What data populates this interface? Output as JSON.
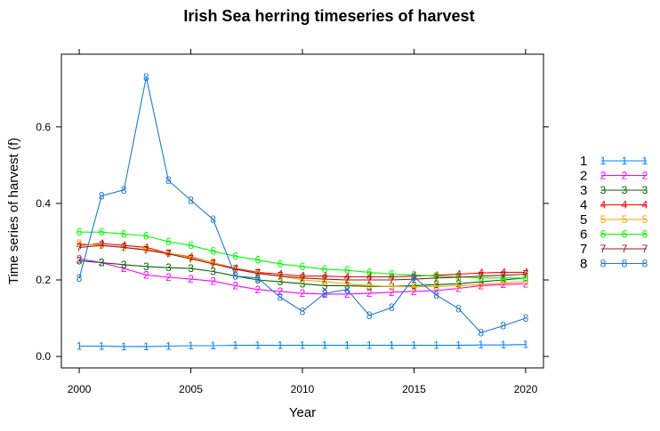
{
  "chart_data": {
    "type": "line",
    "title": "Irish Sea herring timeseries of harvest",
    "xlabel": "Year",
    "ylabel": "Time series of harvest (f)",
    "xlim": [
      1999.2,
      2020.8
    ],
    "ylim": [
      -0.03,
      0.79
    ],
    "x_ticks": [
      "2000",
      "2005",
      "2010",
      "2015",
      "2020"
    ],
    "y_ticks": [
      "0.0",
      "0.2",
      "0.4",
      "0.6"
    ],
    "legend_position": "right",
    "grid": false,
    "x": [
      2000,
      2001,
      2002,
      2003,
      2004,
      2005,
      2006,
      2007,
      2008,
      2009,
      2010,
      2011,
      2012,
      2013,
      2014,
      2015,
      2016,
      2017,
      2018,
      2019,
      2020
    ],
    "series": [
      {
        "name": "1",
        "color": "#0080ff",
        "values": [
          0.027,
          0.027,
          0.026,
          0.026,
          0.027,
          0.028,
          0.028,
          0.029,
          0.029,
          0.029,
          0.029,
          0.029,
          0.029,
          0.029,
          0.029,
          0.029,
          0.029,
          0.029,
          0.03,
          0.03,
          0.031
        ]
      },
      {
        "name": "2",
        "color": "#ff00ff",
        "values": [
          0.255,
          0.245,
          0.23,
          0.213,
          0.207,
          0.202,
          0.197,
          0.185,
          0.175,
          0.17,
          0.165,
          0.163,
          0.163,
          0.165,
          0.168,
          0.17,
          0.172,
          0.178,
          0.185,
          0.188,
          0.19
        ]
      },
      {
        "name": "3",
        "color": "#006400",
        "values": [
          0.25,
          0.245,
          0.24,
          0.235,
          0.232,
          0.23,
          0.222,
          0.21,
          0.2,
          0.195,
          0.19,
          0.185,
          0.185,
          0.183,
          0.183,
          0.185,
          0.188,
          0.19,
          0.195,
          0.2,
          0.205
        ]
      },
      {
        "name": "4",
        "color": "#ff0000",
        "values": [
          0.29,
          0.295,
          0.29,
          0.285,
          0.27,
          0.26,
          0.245,
          0.23,
          0.22,
          0.215,
          0.21,
          0.21,
          0.208,
          0.208,
          0.208,
          0.21,
          0.212,
          0.215,
          0.218,
          0.22,
          0.22
        ]
      },
      {
        "name": "5",
        "color": "#ffa500",
        "values": [
          0.295,
          0.29,
          0.285,
          0.28,
          0.27,
          0.258,
          0.245,
          0.228,
          0.218,
          0.21,
          0.2,
          0.195,
          0.19,
          0.185,
          0.183,
          0.182,
          0.183,
          0.185,
          0.188,
          0.192,
          0.195
        ]
      },
      {
        "name": "6",
        "color": "#00ff00",
        "values": [
          0.325,
          0.325,
          0.32,
          0.315,
          0.3,
          0.29,
          0.275,
          0.262,
          0.252,
          0.242,
          0.235,
          0.228,
          0.225,
          0.22,
          0.215,
          0.213,
          0.21,
          0.208,
          0.205,
          0.205,
          0.205
        ]
      },
      {
        "name": "7",
        "color": "#8b2323",
        "values": [
          0.285,
          0.29,
          0.285,
          0.278,
          0.268,
          0.255,
          0.242,
          0.228,
          0.217,
          0.21,
          0.205,
          0.202,
          0.2,
          0.2,
          0.2,
          0.202,
          0.205,
          0.207,
          0.21,
          0.212,
          0.215
        ]
      },
      {
        "name": "8",
        "color": "#1f78d4",
        "values": [
          0.205,
          0.42,
          0.435,
          0.73,
          0.46,
          0.408,
          0.358,
          0.21,
          0.205,
          0.155,
          0.118,
          0.165,
          0.175,
          0.107,
          0.128,
          0.207,
          0.16,
          0.125,
          0.062,
          0.08,
          0.1
        ]
      }
    ]
  }
}
